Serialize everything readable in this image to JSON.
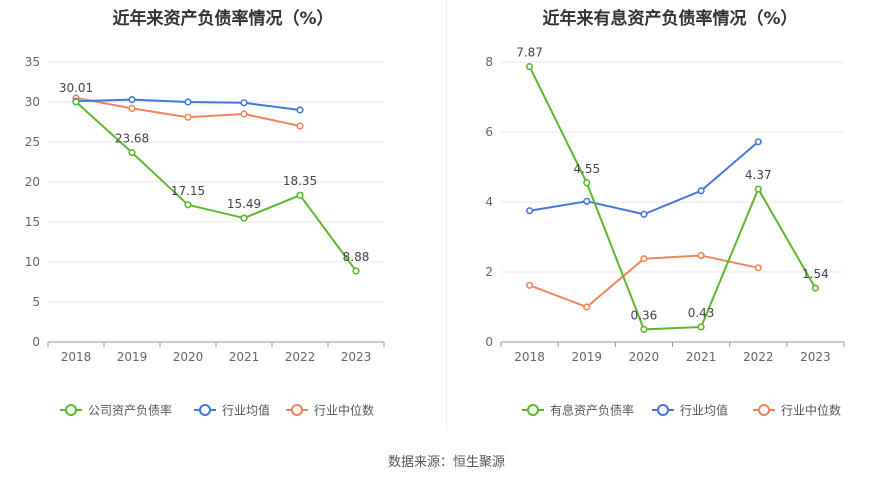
{
  "source": "数据来源：恒生聚源",
  "chart_data": [
    {
      "type": "line",
      "title": "近年来资产负债率情况（%）",
      "categories": [
        "2018",
        "2019",
        "2020",
        "2021",
        "2022",
        "2023"
      ],
      "ylim": [
        0,
        35
      ],
      "yticks": [
        0,
        5,
        10,
        15,
        20,
        25,
        30,
        35
      ],
      "grid": true,
      "legend_position": "bottom",
      "series": [
        {
          "name": "公司资产负债率",
          "color": "#5cb82c",
          "labeled": true,
          "values": [
            30.01,
            23.68,
            17.15,
            15.49,
            18.35,
            8.88
          ],
          "labels": [
            "30.01",
            "23.68",
            "17.15",
            "15.49",
            "18.35",
            "8.88"
          ]
        },
        {
          "name": "行业均值",
          "color": "#4477dd",
          "labeled": false,
          "values": [
            30.1,
            30.3,
            30.0,
            29.9,
            29.0,
            null
          ]
        },
        {
          "name": "行业中位数",
          "color": "#f0845a",
          "labeled": false,
          "values": [
            30.5,
            29.2,
            28.1,
            28.5,
            27.0,
            null
          ]
        }
      ]
    },
    {
      "type": "line",
      "title": "近年来有息资产负债率情况（%）",
      "categories": [
        "2018",
        "2019",
        "2020",
        "2021",
        "2022",
        "2023"
      ],
      "ylim": [
        0,
        8
      ],
      "yticks": [
        0,
        2,
        4,
        6,
        8
      ],
      "grid": true,
      "legend_position": "bottom",
      "series": [
        {
          "name": "有息资产负债率",
          "color": "#5cb82c",
          "labeled": true,
          "values": [
            7.87,
            4.55,
            0.36,
            0.43,
            4.37,
            1.54
          ],
          "labels": [
            "7.87",
            "4.55",
            "0.36",
            "0.43",
            "4.37",
            "1.54"
          ]
        },
        {
          "name": "行业均值",
          "color": "#4477dd",
          "labeled": false,
          "values": [
            3.75,
            4.02,
            3.65,
            4.32,
            5.72,
            null
          ]
        },
        {
          "name": "行业中位数",
          "color": "#f0845a",
          "labeled": false,
          "values": [
            1.62,
            1.0,
            2.38,
            2.47,
            2.12,
            null
          ]
        }
      ]
    }
  ]
}
